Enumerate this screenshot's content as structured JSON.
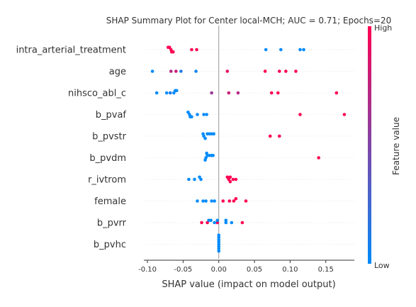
{
  "chart_data": {
    "type": "scatter",
    "title": "SHAP Summary Plot for Center local-MCH; AUC = 0.71; Epochs=20",
    "xlabel": "SHAP value (impact on model output)",
    "xlim": [
      -0.105,
      0.19
    ],
    "xticks": [
      -0.1,
      -0.05,
      0.0,
      0.05,
      0.1,
      0.15
    ],
    "xtick_labels": [
      "-0.10",
      "-0.05",
      "0.00",
      "0.05",
      "0.10",
      "0.15"
    ],
    "grid": false,
    "colorbar": {
      "label": "Feature value",
      "high_label": "High",
      "low_label": "Low",
      "high_color": "#ff0052",
      "low_color": "#008bfb"
    },
    "features": [
      {
        "name": "intra_arterial_treatment",
        "points": [
          {
            "x": -0.067,
            "v": 1.0
          },
          {
            "x": -0.069,
            "v": 1.0
          },
          {
            "x": -0.066,
            "v": 1.0
          },
          {
            "x": -0.071,
            "v": 1.0
          },
          {
            "x": -0.064,
            "v": 1.0
          },
          {
            "x": -0.038,
            "v": 1.0
          },
          {
            "x": -0.031,
            "v": 1.0
          },
          {
            "x": 0.066,
            "v": 0.0
          },
          {
            "x": 0.087,
            "v": 0.0
          },
          {
            "x": 0.114,
            "v": 0.0
          },
          {
            "x": 0.119,
            "v": 0.0
          }
        ]
      },
      {
        "name": "age",
        "points": [
          {
            "x": -0.093,
            "v": 0.0
          },
          {
            "x": -0.067,
            "v": 0.7
          },
          {
            "x": -0.06,
            "v": 0.8
          },
          {
            "x": -0.053,
            "v": 0.1
          },
          {
            "x": -0.032,
            "v": 0.05
          },
          {
            "x": 0.012,
            "v": 0.9
          },
          {
            "x": 0.065,
            "v": 1.0
          },
          {
            "x": 0.085,
            "v": 1.0
          },
          {
            "x": 0.094,
            "v": 1.0
          },
          {
            "x": 0.108,
            "v": 1.0
          }
        ]
      },
      {
        "name": "nihsco_abl_c",
        "points": [
          {
            "x": -0.087,
            "v": 0.0
          },
          {
            "x": -0.073,
            "v": 0.0
          },
          {
            "x": -0.068,
            "v": 0.1
          },
          {
            "x": -0.063,
            "v": 0.0
          },
          {
            "x": -0.061,
            "v": 0.0
          },
          {
            "x": -0.059,
            "v": 0.0
          },
          {
            "x": -0.01,
            "v": 0.6
          },
          {
            "x": 0.014,
            "v": 0.8
          },
          {
            "x": 0.027,
            "v": 0.7
          },
          {
            "x": 0.074,
            "v": 1.0
          },
          {
            "x": 0.083,
            "v": 1.0
          },
          {
            "x": 0.165,
            "v": 1.0
          }
        ]
      },
      {
        "name": "b_pvaf",
        "points": [
          {
            "x": -0.041,
            "v": 0.0
          },
          {
            "x": -0.043,
            "v": 0.0
          },
          {
            "x": -0.04,
            "v": 0.0
          },
          {
            "x": -0.038,
            "v": 0.0
          },
          {
            "x": -0.03,
            "v": 0.0
          },
          {
            "x": -0.021,
            "v": 0.0
          },
          {
            "x": -0.017,
            "v": 0.0
          },
          {
            "x": 0.114,
            "v": 1.0
          },
          {
            "x": 0.176,
            "v": 1.0
          }
        ]
      },
      {
        "name": "b_pvstr",
        "points": [
          {
            "x": -0.021,
            "v": 0.0
          },
          {
            "x": -0.022,
            "v": 0.0
          },
          {
            "x": -0.019,
            "v": 0.0
          },
          {
            "x": -0.016,
            "v": 0.0
          },
          {
            "x": -0.013,
            "v": 0.0
          },
          {
            "x": -0.01,
            "v": 0.0
          },
          {
            "x": -0.007,
            "v": 0.0
          },
          {
            "x": 0.072,
            "v": 1.0
          },
          {
            "x": 0.085,
            "v": 1.0
          }
        ]
      },
      {
        "name": "b_pvdm",
        "points": [
          {
            "x": -0.018,
            "v": 0.0
          },
          {
            "x": -0.016,
            "v": 0.0
          },
          {
            "x": -0.019,
            "v": 0.0
          },
          {
            "x": -0.013,
            "v": 0.0
          },
          {
            "x": -0.01,
            "v": 0.0
          },
          {
            "x": -0.008,
            "v": 0.0
          },
          {
            "x": -0.017,
            "v": 0.0
          },
          {
            "x": 0.14,
            "v": 1.0
          }
        ]
      },
      {
        "name": "r_ivtrom",
        "points": [
          {
            "x": -0.042,
            "v": 0.0
          },
          {
            "x": -0.034,
            "v": 0.0
          },
          {
            "x": -0.025,
            "v": 0.0
          },
          {
            "x": -0.027,
            "v": 0.0
          },
          {
            "x": 0.014,
            "v": 1.0
          },
          {
            "x": 0.012,
            "v": 1.0
          },
          {
            "x": 0.016,
            "v": 1.0
          },
          {
            "x": 0.02,
            "v": 1.0
          },
          {
            "x": 0.024,
            "v": 1.0
          },
          {
            "x": 0.016,
            "v": 1.0
          }
        ]
      },
      {
        "name": "female",
        "points": [
          {
            "x": -0.03,
            "v": 0.0
          },
          {
            "x": -0.022,
            "v": 0.0
          },
          {
            "x": -0.018,
            "v": 0.0
          },
          {
            "x": -0.01,
            "v": 0.0
          },
          {
            "x": -0.006,
            "v": 0.0
          },
          {
            "x": 0.006,
            "v": 1.0
          },
          {
            "x": 0.015,
            "v": 1.0
          },
          {
            "x": 0.021,
            "v": 1.0
          },
          {
            "x": 0.024,
            "v": 1.0
          },
          {
            "x": 0.038,
            "v": 1.0
          }
        ]
      },
      {
        "name": "b_pvrr",
        "points": [
          {
            "x": -0.016,
            "v": 1.0
          },
          {
            "x": -0.002,
            "v": 1.0
          },
          {
            "x": -0.024,
            "v": 1.0
          },
          {
            "x": -0.014,
            "v": 0.0
          },
          {
            "x": -0.011,
            "v": 0.0
          },
          {
            "x": -0.006,
            "v": 0.0
          },
          {
            "x": -0.002,
            "v": 0.0
          },
          {
            "x": 0.01,
            "v": 0.0
          },
          {
            "x": 0.01,
            "v": 0.0
          },
          {
            "x": 0.018,
            "v": 0.0
          },
          {
            "x": 0.033,
            "v": 1.0
          }
        ]
      },
      {
        "name": "b_pvhc",
        "points": [
          {
            "x": 0.0,
            "v": 0.0
          },
          {
            "x": 0.0,
            "v": 0.0
          },
          {
            "x": 0.0,
            "v": 0.0
          },
          {
            "x": 0.0,
            "v": 0.0
          },
          {
            "x": 0.0,
            "v": 0.0
          },
          {
            "x": 0.0,
            "v": 0.0
          },
          {
            "x": 0.0,
            "v": 0.0
          },
          {
            "x": 0.0,
            "v": 0.0
          }
        ]
      }
    ]
  }
}
